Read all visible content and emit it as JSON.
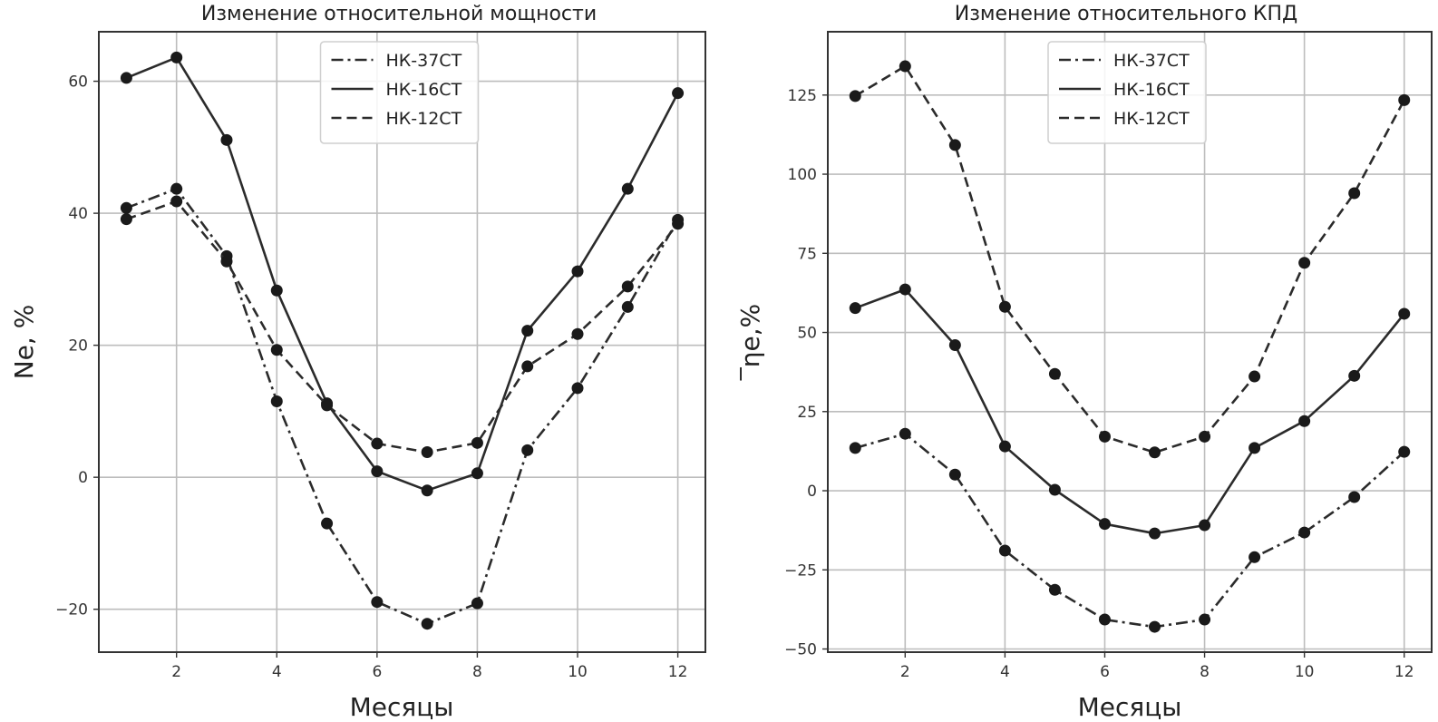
{
  "chart_data": [
    {
      "type": "line",
      "title": "Изменение относительной мощности",
      "xlabel": "Месяцы",
      "ylabel": "Ne, %",
      "xlim": [
        0.45,
        12.55
      ],
      "ylim": [
        -26.5,
        67.5
      ],
      "xticks": [
        2,
        4,
        6,
        8,
        10,
        12
      ],
      "yticks": [
        -20,
        0,
        20,
        40,
        60
      ],
      "x": [
        1,
        2,
        3,
        4,
        5,
        6,
        7,
        8,
        9,
        10,
        11,
        12
      ],
      "grid": true,
      "legend_position": "top-center",
      "series": [
        {
          "name": "НК-37СТ",
          "style": "dashdot",
          "values": [
            40.8,
            43.7,
            33.5,
            11.5,
            -7.0,
            -18.9,
            -22.2,
            -19.1,
            4.1,
            13.5,
            25.8,
            39.0
          ]
        },
        {
          "name": "НК-16СТ",
          "style": "solid",
          "values": [
            60.5,
            63.6,
            51.1,
            28.3,
            11.2,
            0.9,
            -2.0,
            0.6,
            22.2,
            31.2,
            43.7,
            58.2
          ]
        },
        {
          "name": "НК-12СТ",
          "style": "dashed",
          "values": [
            39.1,
            41.8,
            32.7,
            19.3,
            10.9,
            5.1,
            3.8,
            5.2,
            16.8,
            21.7,
            28.9,
            38.4
          ]
        }
      ]
    },
    {
      "type": "line",
      "title": "Изменение относительного КПД",
      "xlabel": "Месяцы",
      "ylabel": "‾ηe,%",
      "xlim": [
        0.45,
        12.55
      ],
      "ylim": [
        -51,
        145
      ],
      "xticks": [
        2,
        4,
        6,
        8,
        10,
        12
      ],
      "yticks": [
        -50,
        -25,
        0,
        25,
        50,
        75,
        100,
        125
      ],
      "x": [
        1,
        2,
        3,
        4,
        5,
        6,
        7,
        8,
        9,
        10,
        11,
        12
      ],
      "grid": true,
      "legend_position": "top-center",
      "series": [
        {
          "name": "НК-37СТ",
          "style": "dashdot",
          "values": [
            13.5,
            18.0,
            5.1,
            -18.9,
            -31.3,
            -40.7,
            -43.0,
            -40.7,
            -21.0,
            -13.2,
            -2.0,
            12.3
          ]
        },
        {
          "name": "НК-16СТ",
          "style": "solid",
          "values": [
            57.7,
            63.6,
            46.0,
            14.0,
            0.3,
            -10.5,
            -13.5,
            -10.9,
            13.5,
            22.0,
            36.3,
            55.9
          ]
        },
        {
          "name": "НК-12СТ",
          "style": "dashed",
          "values": [
            124.7,
            134.1,
            109.2,
            58.1,
            36.9,
            17.1,
            12.1,
            17.1,
            36.1,
            72.0,
            94.0,
            123.4
          ]
        }
      ]
    }
  ]
}
